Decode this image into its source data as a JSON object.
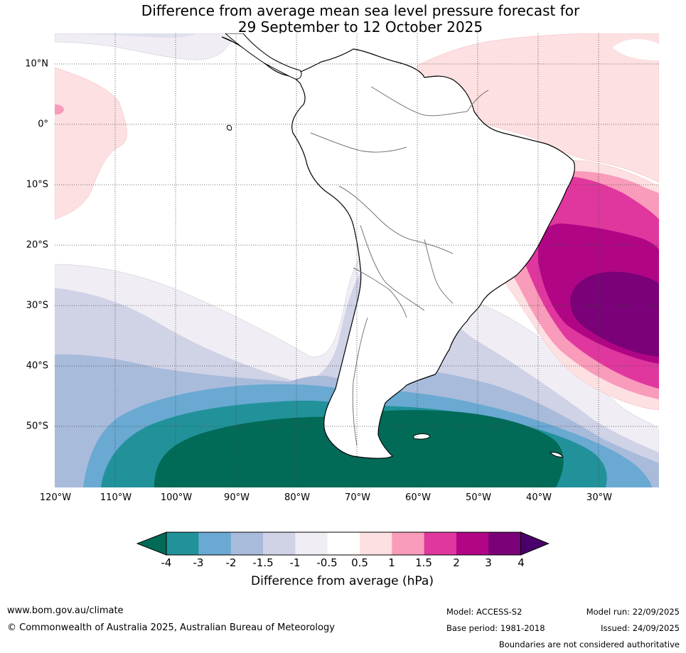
{
  "title": {
    "line1": "Difference from average mean sea level pressure forecast for",
    "line2": "29 September to 12 October 2025"
  },
  "map": {
    "lat_labels": [
      "10°N",
      "0°",
      "10°S",
      "20°S",
      "30°S",
      "40°S",
      "50°S"
    ],
    "lon_labels": [
      "120°W",
      "110°W",
      "100°W",
      "90°W",
      "80°W",
      "70°W",
      "60°W",
      "50°W",
      "40°W",
      "30°W"
    ],
    "extent": {
      "lon_min": -120,
      "lon_max": -20,
      "lat_min": -60,
      "lat_max": 15
    }
  },
  "colorbar": {
    "tick_labels": [
      "-4",
      "-3",
      "-2",
      "-1.5",
      "-1",
      "-0.5",
      "0.5",
      "1",
      "1.5",
      "2",
      "3",
      "4"
    ],
    "colors": [
      "#016b58",
      "#21929a",
      "#69a9d2",
      "#a8bbdb",
      "#d0d2e6",
      "#f1edf4",
      "#ffffff",
      "#fde0e1",
      "#f99bbb",
      "#e0379f",
      "#b00685",
      "#7a0177",
      "#4a006a"
    ],
    "title": "Difference from average (hPa)"
  },
  "footer": {
    "website": "www.bom.gov.au/climate",
    "copyright": "© Commonwealth of Australia 2025, Australian Bureau of Meteorology",
    "model": "Model: ACCESS-S2",
    "base_period": "Base period: 1981-2018",
    "model_run": "Model run: 22/09/2025",
    "issued": "Issued: 24/09/2025",
    "disclaimer": "Boundaries are not considered authoritative"
  }
}
